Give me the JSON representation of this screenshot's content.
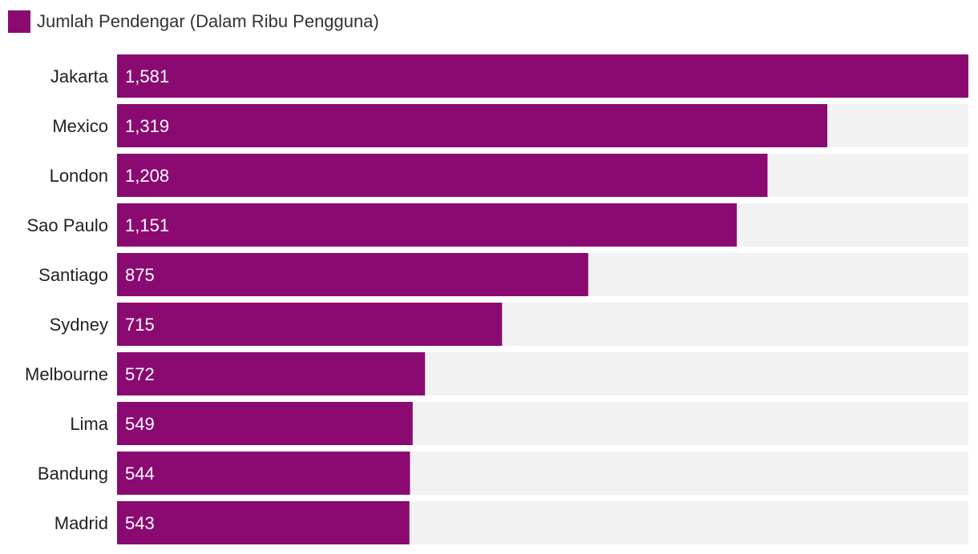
{
  "colors": {
    "bar": "#8a0a72",
    "track": "#f2f2f2"
  },
  "chart_data": {
    "type": "bar",
    "orientation": "horizontal",
    "title": "",
    "xlabel": "",
    "ylabel": "",
    "legend": {
      "position": "top-left",
      "entries": [
        "Jumlah Pendengar (Dalam Ribu Pengguna)"
      ]
    },
    "categories": [
      "Jakarta",
      "Mexico",
      "London",
      "Sao Paulo",
      "Santiago",
      "Sydney",
      "Melbourne",
      "Lima",
      "Bandung",
      "Madrid"
    ],
    "series": [
      {
        "name": "Jumlah Pendengar (Dalam Ribu Pengguna)",
        "values": [
          1581,
          1319,
          1208,
          1151,
          875,
          715,
          572,
          549,
          544,
          543
        ],
        "labels": [
          "1,581",
          "1,319",
          "1,208",
          "1,151",
          "875",
          "715",
          "572",
          "549",
          "544",
          "543"
        ]
      }
    ],
    "xlim": [
      0,
      1581
    ],
    "grid": false
  }
}
